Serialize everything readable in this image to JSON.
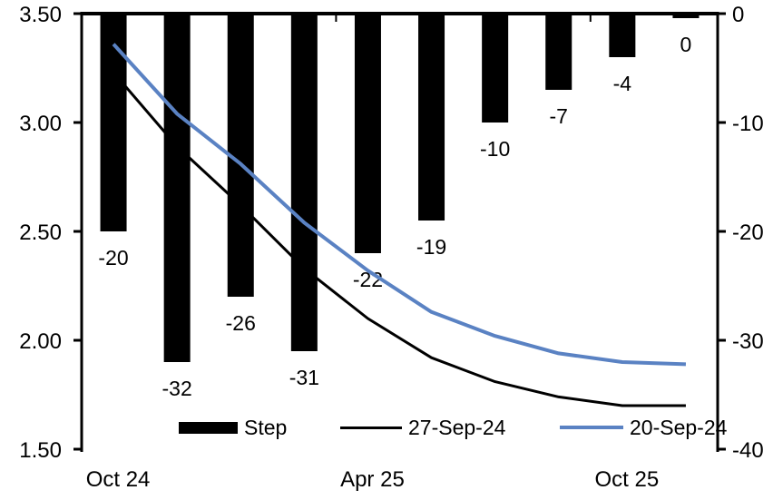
{
  "chart_data": {
    "type": "bar+line (dual axis)",
    "n_slots": 10,
    "left_axis": {
      "tick_labels": [
        "3.50",
        "3.00",
        "2.50",
        "2.00",
        "1.50"
      ],
      "min": 1.5,
      "max": 3.5
    },
    "right_axis": {
      "tick_labels": [
        "0",
        "-10",
        "-20",
        "-30",
        "-40"
      ],
      "min": -40,
      "max": 0
    },
    "x_axis": {
      "labels": [
        {
          "text": "Oct 24",
          "slot": 0
        },
        {
          "text": "Apr 25",
          "slot": 4
        },
        {
          "text": "Oct 25",
          "slot": 8
        }
      ]
    },
    "series": [
      {
        "name": "Step",
        "type": "bar",
        "axis": "right",
        "color": "#000000",
        "values": [
          -20,
          -32,
          -26,
          -31,
          -22,
          -19,
          -10,
          -7,
          -4,
          0
        ],
        "data_labels": [
          "-20",
          "-32",
          "-26",
          "-31",
          "-22",
          "-19",
          "-10",
          "-7",
          "-4",
          "0"
        ]
      },
      {
        "name": "27-Sep-24",
        "type": "line",
        "axis": "left",
        "color": "#000000",
        "stroke_width": 3,
        "values": [
          3.23,
          2.89,
          2.62,
          2.33,
          2.1,
          1.92,
          1.81,
          1.74,
          1.7,
          1.7
        ]
      },
      {
        "name": "20-Sep-24",
        "type": "line",
        "axis": "left",
        "color": "#5a82c3",
        "stroke_width": 4,
        "values": [
          3.36,
          3.04,
          2.81,
          2.54,
          2.32,
          2.13,
          2.02,
          1.94,
          1.9,
          1.89
        ]
      }
    ],
    "legend": {
      "position": "bottom-inside",
      "entries": [
        "Step",
        "27-Sep-24",
        "20-Sep-24"
      ]
    }
  },
  "colors": {
    "bar": "#000000",
    "line_27sep": "#000000",
    "line_20sep": "#5a82c3",
    "axis": "#000000"
  }
}
